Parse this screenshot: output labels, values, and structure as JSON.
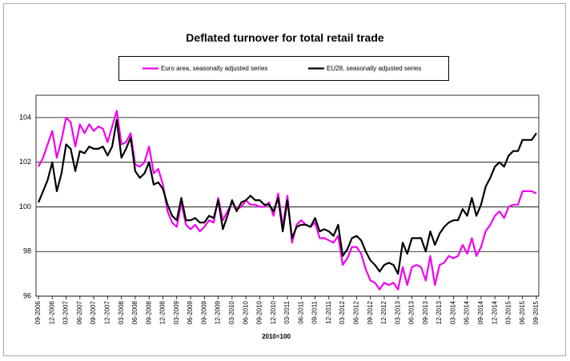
{
  "chart_data": {
    "type": "line",
    "title": "Deflated turnover for total retail trade",
    "xlabel": "2010=100",
    "categories": [
      "09-2006",
      null,
      null,
      "12-2006",
      null,
      null,
      "03-2007",
      null,
      null,
      "06-2007",
      null,
      null,
      "09-2007",
      null,
      null,
      "12-2007",
      null,
      null,
      "03-2008",
      null,
      null,
      "06-2008",
      null,
      null,
      "09-2008",
      null,
      null,
      "12-2008",
      null,
      null,
      "03-2009",
      null,
      null,
      "06-2009",
      null,
      null,
      "09-2009",
      null,
      null,
      "12-2009",
      null,
      null,
      "03-2010",
      null,
      null,
      "06-2010",
      null,
      null,
      "09-2010",
      null,
      null,
      "12-2010",
      null,
      null,
      "03-2011",
      null,
      null,
      "06-2011",
      null,
      null,
      "09-2011",
      null,
      null,
      "12-2011",
      null,
      null,
      "03-2012",
      null,
      null,
      "06-2012",
      null,
      null,
      "09-2012",
      null,
      null,
      "12-2012",
      null,
      null,
      "03-2013",
      null,
      null,
      "06-2013",
      null,
      null,
      "09-2013",
      null,
      null,
      "12-2013",
      null,
      null,
      "03-2014",
      null,
      null,
      "06-2014",
      null,
      null,
      "09-2014",
      null,
      null,
      "12-2014",
      null,
      null,
      "03-2015",
      null,
      null,
      "06-2015",
      null,
      null,
      "09-2015"
    ],
    "series": [
      {
        "name": "Euro area, seasonally adjusted series",
        "color": "#f000f0",
        "values": [
          101.8,
          102.2,
          102.8,
          103.4,
          102.2,
          103.0,
          104.0,
          103.8,
          102.7,
          103.7,
          103.3,
          103.7,
          103.4,
          103.6,
          103.5,
          102.9,
          103.6,
          104.3,
          102.8,
          102.9,
          103.3,
          101.9,
          101.8,
          102.0,
          102.7,
          101.5,
          101.7,
          101.0,
          99.8,
          99.3,
          99.1,
          100.2,
          99.2,
          99.0,
          99.2,
          98.9,
          99.1,
          99.4,
          99.3,
          100.4,
          99.4,
          99.8,
          100.2,
          99.9,
          100.0,
          100.3,
          100.1,
          100.1,
          100.0,
          100.0,
          100.2,
          99.6,
          100.6,
          99.1,
          100.5,
          98.4,
          99.2,
          99.4,
          99.2,
          99.1,
          99.3,
          98.6,
          98.6,
          98.5,
          98.4,
          98.7,
          97.4,
          97.7,
          98.2,
          98.2,
          97.9,
          97.2,
          96.7,
          96.6,
          96.3,
          96.6,
          96.5,
          96.6,
          96.3,
          97.3,
          96.5,
          97.3,
          97.4,
          97.3,
          96.7,
          97.8,
          96.5,
          97.4,
          97.5,
          97.8,
          97.7,
          97.8,
          98.3,
          97.9,
          98.6,
          97.8,
          98.2,
          98.9,
          99.2,
          99.6,
          99.8,
          99.5,
          100.0,
          100.1,
          100.1,
          100.7,
          100.7,
          100.7,
          100.6
        ]
      },
      {
        "name": "EU28, seasonally adjusted series",
        "color": "#000000",
        "values": [
          100.2,
          100.7,
          101.2,
          102.0,
          100.7,
          101.5,
          102.8,
          102.6,
          101.6,
          102.5,
          102.4,
          102.7,
          102.6,
          102.6,
          102.7,
          102.3,
          102.7,
          103.9,
          102.2,
          102.6,
          103.1,
          101.6,
          101.3,
          101.5,
          102.0,
          101.0,
          101.1,
          100.8,
          100.1,
          99.6,
          99.4,
          100.4,
          99.4,
          99.4,
          99.5,
          99.3,
          99.3,
          99.6,
          99.5,
          100.3,
          99.0,
          99.6,
          100.3,
          99.8,
          100.2,
          100.3,
          100.5,
          100.3,
          100.3,
          100.1,
          100.1,
          99.8,
          100.4,
          98.9,
          100.3,
          98.6,
          99.1,
          99.2,
          99.2,
          99.1,
          99.5,
          98.9,
          99.0,
          98.9,
          98.7,
          99.2,
          97.8,
          98.1,
          98.6,
          98.7,
          98.5,
          98.0,
          97.6,
          97.4,
          97.1,
          97.4,
          97.5,
          97.4,
          97.0,
          98.4,
          97.9,
          98.6,
          98.6,
          98.6,
          98.0,
          98.9,
          98.3,
          98.8,
          99.1,
          99.3,
          99.4,
          99.4,
          99.9,
          99.6,
          100.4,
          99.6,
          100.1,
          100.9,
          101.3,
          101.8,
          102.0,
          101.8,
          102.3,
          102.5,
          102.5,
          103.0,
          103.0,
          103.0,
          103.3
        ]
      }
    ],
    "ylim": [
      96,
      105
    ],
    "yticks": [
      96,
      98,
      100,
      102,
      104
    ],
    "grid": true
  }
}
